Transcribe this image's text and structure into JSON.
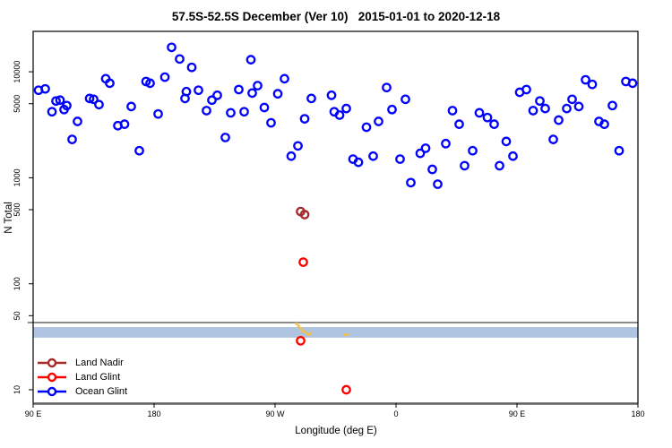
{
  "page": {
    "background": "#FFFFFF"
  },
  "chart_data": {
    "type": "scatter",
    "title": "57.5S-52.5S December (Ver 10)   2015-01-01 to 2020-12-18",
    "xlabel": "Longitude (deg E)",
    "ylabel": "N Total",
    "x_axis": {
      "unit": "degrees east of 90E, wrapping eastward to 180",
      "range": [
        0,
        450
      ],
      "ticks": [
        0,
        90,
        180,
        270,
        360,
        450
      ],
      "tick_labels": [
        "90 E",
        "180",
        "90 W",
        "0",
        "90 E",
        "180"
      ]
    },
    "y_axis": {
      "scale": "log10",
      "range": [
        7.5,
        24000
      ],
      "ticks": [
        10,
        50,
        100,
        500,
        1000,
        5000,
        10000
      ],
      "tick_labels": [
        "10",
        "50",
        "100",
        "500",
        "1000",
        "5000",
        "10000"
      ]
    },
    "reference_line": {
      "value": 43,
      "color": "#8C8C8C"
    },
    "reference_band": {
      "low": 31,
      "high": 39,
      "color": "#AEC4E0"
    },
    "legend": {
      "position": "bottom-left",
      "items": [
        {
          "label": "Land Nadir",
          "color": "#A52A2A"
        },
        {
          "label": "Land Glint",
          "color": "#FF0000"
        },
        {
          "label": "Ocean Glint",
          "color": "#0000FF"
        }
      ]
    },
    "series": [
      {
        "name": "Ocean Glint",
        "color": "#0000FF",
        "marker": "open-circle",
        "points": [
          [
            4,
            6700
          ],
          [
            9,
            6900
          ],
          [
            14,
            4200
          ],
          [
            17,
            5300
          ],
          [
            20,
            5400
          ],
          [
            23,
            4400
          ],
          [
            25,
            4800
          ],
          [
            29,
            2300
          ],
          [
            33,
            3400
          ],
          [
            42,
            5600
          ],
          [
            45,
            5500
          ],
          [
            49,
            4900
          ],
          [
            54,
            8600
          ],
          [
            57,
            7800
          ],
          [
            63,
            3100
          ],
          [
            68,
            3200
          ],
          [
            73,
            4700
          ],
          [
            79,
            1800
          ],
          [
            84,
            8100
          ],
          [
            87,
            7800
          ],
          [
            93,
            4000
          ],
          [
            98,
            8900
          ],
          [
            103,
            17000
          ],
          [
            109,
            13200
          ],
          [
            113,
            5600
          ],
          [
            114,
            6500
          ],
          [
            118,
            11000
          ],
          [
            123,
            6700
          ],
          [
            129,
            4300
          ],
          [
            133,
            5400
          ],
          [
            137,
            6000
          ],
          [
            143,
            2400
          ],
          [
            147,
            4100
          ],
          [
            153,
            6800
          ],
          [
            157,
            4200
          ],
          [
            162,
            13000
          ],
          [
            163,
            6300
          ],
          [
            167,
            7400
          ],
          [
            172,
            4600
          ],
          [
            177,
            3300
          ],
          [
            182,
            6200
          ],
          [
            187,
            8600
          ],
          [
            192,
            1600
          ],
          [
            197,
            2000
          ],
          [
            202,
            3600
          ],
          [
            207,
            5600
          ],
          [
            222,
            6000
          ],
          [
            224,
            4200
          ],
          [
            228,
            3900
          ],
          [
            233,
            4500
          ],
          [
            238,
            1500
          ],
          [
            242,
            1400
          ],
          [
            248,
            3000
          ],
          [
            253,
            1600
          ],
          [
            257,
            3400
          ],
          [
            263,
            7100
          ],
          [
            267,
            4400
          ],
          [
            273,
            1500
          ],
          [
            277,
            5500
          ],
          [
            281,
            900
          ],
          [
            288,
            1700
          ],
          [
            292,
            1900
          ],
          [
            297,
            1200
          ],
          [
            301,
            870
          ],
          [
            307,
            2100
          ],
          [
            312,
            4300
          ],
          [
            317,
            3200
          ],
          [
            321,
            1300
          ],
          [
            327,
            1800
          ],
          [
            332,
            4100
          ],
          [
            338,
            3700
          ],
          [
            343,
            3200
          ],
          [
            347,
            1300
          ],
          [
            352,
            2200
          ],
          [
            357,
            1600
          ],
          [
            362,
            6400
          ],
          [
            367,
            6800
          ],
          [
            372,
            4300
          ],
          [
            377,
            5300
          ],
          [
            381,
            4500
          ],
          [
            387,
            2300
          ],
          [
            391,
            3500
          ],
          [
            397,
            4500
          ],
          [
            401,
            5500
          ],
          [
            406,
            4700
          ],
          [
            411,
            8400
          ],
          [
            416,
            7600
          ],
          [
            421,
            3400
          ],
          [
            425,
            3200
          ],
          [
            431,
            4800
          ],
          [
            436,
            1800
          ],
          [
            441,
            8100
          ],
          [
            446,
            7800
          ]
        ]
      },
      {
        "name": "Yellow Cluster",
        "color": "#F0C050",
        "marker": "small-dot",
        "points": [
          [
            196,
            42
          ],
          [
            197.5,
            40
          ],
          [
            199,
            38
          ],
          [
            200.5,
            36
          ],
          [
            202,
            35
          ],
          [
            203.5,
            34
          ],
          [
            205,
            33
          ],
          [
            206.5,
            34
          ],
          [
            232,
            33
          ],
          [
            234,
            33
          ]
        ]
      },
      {
        "name": "Land Glint",
        "color": "#FF0000",
        "marker": "open-circle",
        "points": [
          [
            201,
            160
          ],
          [
            199,
            29
          ],
          [
            233,
            10
          ]
        ]
      },
      {
        "name": "Land Nadir",
        "color": "#A52A2A",
        "marker": "open-circle",
        "points": [
          [
            199,
            480
          ],
          [
            202,
            450
          ]
        ]
      }
    ]
  }
}
